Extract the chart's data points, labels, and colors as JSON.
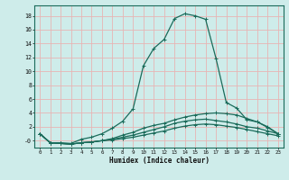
{
  "xlabel": "Humidex (Indice chaleur)",
  "ylabel": "",
  "bg_color": "#ceecea",
  "grid_color": "#e8b4b4",
  "line_color": "#1a6b5a",
  "xlim": [
    -0.5,
    23.5
  ],
  "ylim": [
    -1.0,
    19.5
  ],
  "xticks": [
    0,
    1,
    2,
    3,
    4,
    5,
    6,
    7,
    8,
    9,
    10,
    11,
    12,
    13,
    14,
    15,
    16,
    17,
    18,
    19,
    20,
    21,
    22,
    23
  ],
  "yticks": [
    0,
    2,
    4,
    6,
    8,
    10,
    12,
    14,
    16,
    18
  ],
  "ytick_labels": [
    "-0",
    "2",
    "4",
    "6",
    "8",
    "10",
    "12",
    "14",
    "16",
    "18"
  ],
  "curve1_x": [
    0,
    1,
    2,
    3,
    4,
    5,
    6,
    7,
    8,
    9,
    10,
    11,
    12,
    13,
    14,
    15,
    16,
    17,
    18,
    19,
    20,
    21,
    22,
    23
  ],
  "curve1_y": [
    1.0,
    -0.3,
    -0.3,
    -0.4,
    0.2,
    0.5,
    1.0,
    1.8,
    2.8,
    4.6,
    10.8,
    13.3,
    14.6,
    17.6,
    18.3,
    18.0,
    17.5,
    11.9,
    5.5,
    4.7,
    3.0,
    2.7,
    1.9,
    1.0
  ],
  "curve2_x": [
    0,
    1,
    2,
    3,
    4,
    5,
    6,
    7,
    8,
    9,
    10,
    11,
    12,
    13,
    14,
    15,
    16,
    17,
    18,
    19,
    20,
    21,
    22,
    23
  ],
  "curve2_y": [
    1.0,
    -0.3,
    -0.4,
    -0.5,
    -0.3,
    -0.2,
    0.0,
    0.3,
    0.8,
    1.2,
    1.8,
    2.2,
    2.5,
    3.0,
    3.4,
    3.7,
    3.9,
    4.0,
    3.9,
    3.7,
    3.2,
    2.7,
    2.0,
    1.0
  ],
  "curve3_x": [
    0,
    1,
    2,
    3,
    4,
    5,
    6,
    7,
    8,
    9,
    10,
    11,
    12,
    13,
    14,
    15,
    16,
    17,
    18,
    19,
    20,
    21,
    22,
    23
  ],
  "curve3_y": [
    1.0,
    -0.3,
    -0.4,
    -0.5,
    -0.3,
    -0.2,
    0.0,
    0.2,
    0.5,
    0.8,
    1.2,
    1.6,
    2.0,
    2.5,
    2.8,
    3.0,
    3.1,
    2.9,
    2.7,
    2.4,
    2.0,
    1.8,
    1.4,
    1.0
  ],
  "curve4_x": [
    0,
    1,
    2,
    3,
    4,
    5,
    6,
    7,
    8,
    9,
    10,
    11,
    12,
    13,
    14,
    15,
    16,
    17,
    18,
    19,
    20,
    21,
    22,
    23
  ],
  "curve4_y": [
    1.0,
    -0.3,
    -0.4,
    -0.5,
    -0.3,
    -0.2,
    0.0,
    0.1,
    0.3,
    0.5,
    0.8,
    1.1,
    1.4,
    1.8,
    2.1,
    2.3,
    2.4,
    2.3,
    2.1,
    1.9,
    1.6,
    1.3,
    1.0,
    0.7
  ]
}
